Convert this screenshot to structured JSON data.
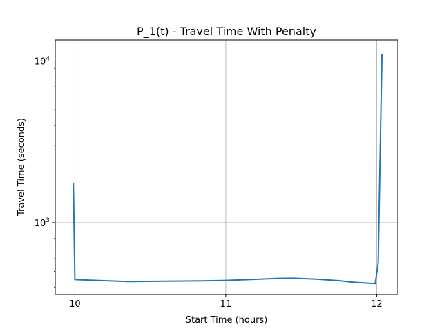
{
  "chart_data": {
    "type": "line",
    "title": "P_1(t) - Travel Time With Penalty",
    "xlabel": "Start Time (hours)",
    "ylabel": "Travel Time (seconds)",
    "xlim": [
      9.87,
      12.14
    ],
    "ylim": [
      360,
      13500
    ],
    "yscale": "log",
    "grid": true,
    "legend": "none",
    "x_ticks": [
      {
        "value": 10,
        "label": "10"
      },
      {
        "value": 11,
        "label": "11"
      },
      {
        "value": 12,
        "label": "12"
      }
    ],
    "y_ticks": [
      {
        "value": 1000,
        "base": "10",
        "exp": "3"
      },
      {
        "value": 10000,
        "base": "10",
        "exp": "4"
      }
    ],
    "series": [
      {
        "color": "#1f77b4",
        "x": [
          9.99,
          10.0,
          10.35,
          10.6,
          10.85,
          11.0,
          11.2,
          11.35,
          11.45,
          11.6,
          11.75,
          11.85,
          11.99,
          12.01,
          12.035
        ],
        "y": [
          1750,
          445,
          433,
          435,
          437,
          440,
          447,
          453,
          454,
          448,
          438,
          428,
          420,
          560,
          11000
        ]
      }
    ]
  }
}
